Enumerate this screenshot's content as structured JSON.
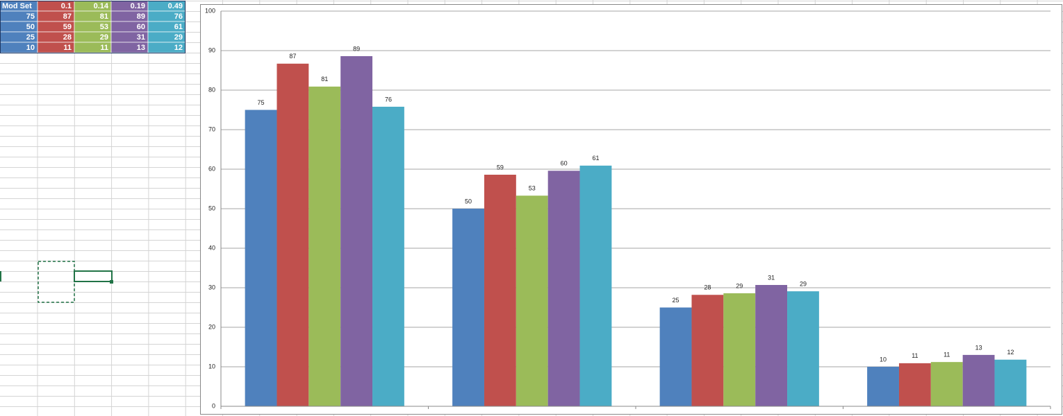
{
  "table": {
    "header": [
      "Mod Set",
      "0.1",
      "0.14",
      "0.19",
      "0.49"
    ],
    "rows": [
      [
        75,
        87,
        81,
        89,
        76
      ],
      [
        50,
        59,
        53,
        60,
        61
      ],
      [
        25,
        28,
        29,
        31,
        29
      ],
      [
        10,
        11,
        11,
        13,
        12
      ]
    ]
  },
  "chart_data": {
    "type": "bar",
    "categories": [
      null,
      null,
      null,
      null
    ],
    "series": [
      {
        "color": "#4f81bd",
        "values": [
          75,
          50,
          25,
          10
        ]
      },
      {
        "color": "#c0504d",
        "values": [
          86.7,
          58.6,
          28.2,
          10.9
        ],
        "value_labels": [
          "87",
          "59",
          "28",
          "11"
        ]
      },
      {
        "color": "#9bbb59",
        "values": [
          80.9,
          53.3,
          28.6,
          11.2
        ],
        "value_labels": [
          "81",
          "53",
          "29",
          "11"
        ]
      },
      {
        "color": "#8064a2",
        "values": [
          88.6,
          59.6,
          30.7,
          13
        ],
        "value_labels": [
          "89",
          "60",
          "31",
          "13"
        ]
      },
      {
        "color": "#4bacc6",
        "values": [
          75.8,
          60.9,
          29.1,
          11.8
        ],
        "value_labels": [
          "76",
          "61",
          "29",
          "12"
        ]
      }
    ],
    "ylim": [
      0,
      100
    ],
    "yticks": [
      0,
      10,
      20,
      30,
      40,
      50,
      60,
      70,
      80,
      90,
      100
    ],
    "grid": true
  }
}
